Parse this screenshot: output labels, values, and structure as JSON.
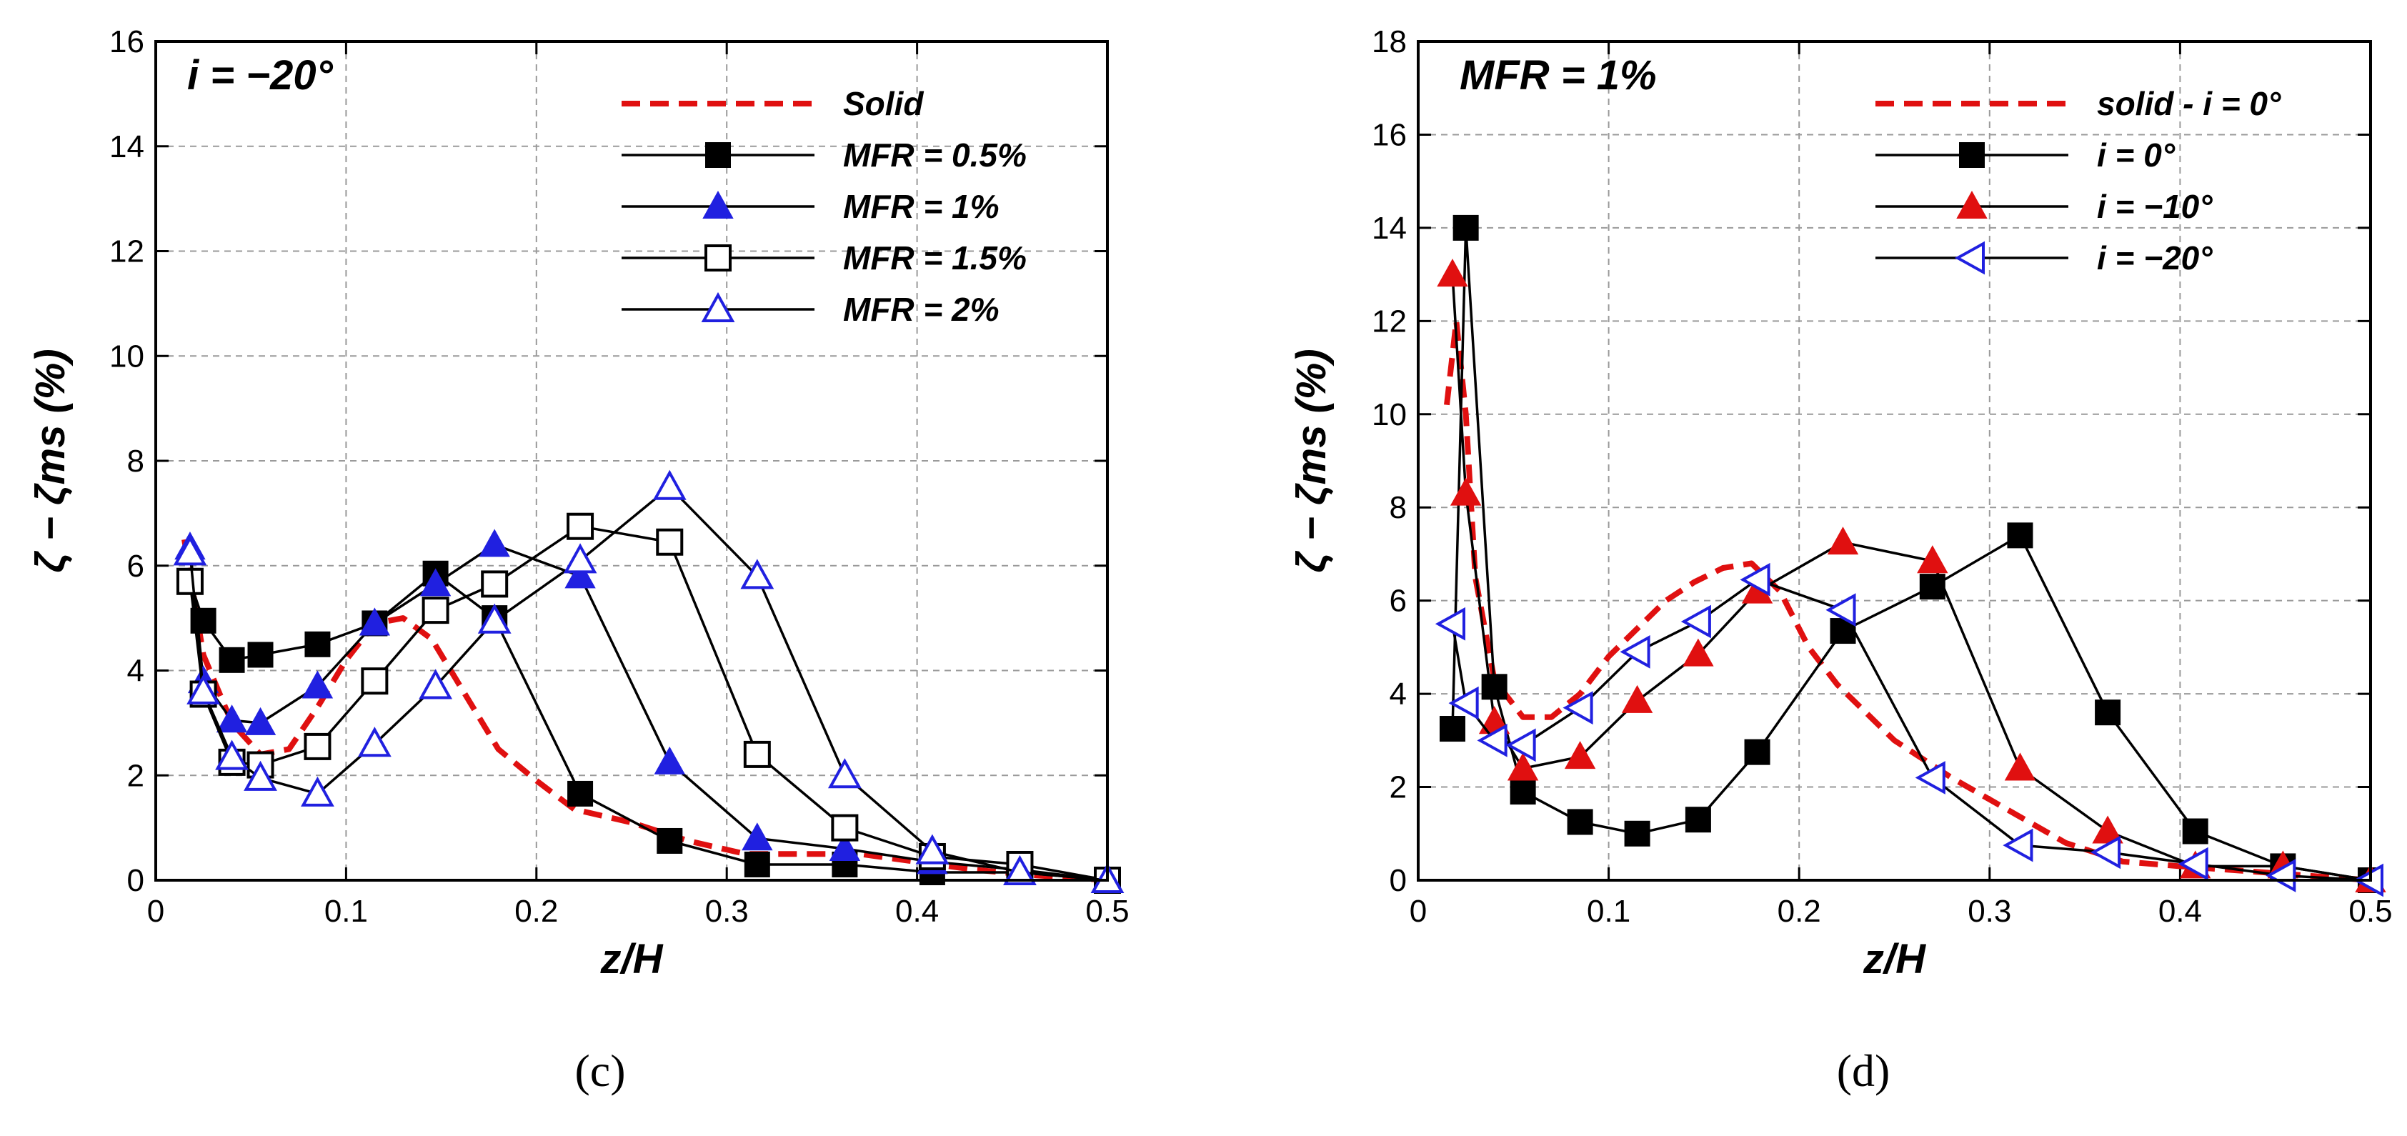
{
  "chart_data": [
    {
      "type": "line",
      "title": "i = −20°",
      "panel_label": "(c)",
      "xlabel": "z/H",
      "ylabel": "ζ − ζms (%)",
      "xlim": [
        0,
        0.5
      ],
      "ylim": [
        0,
        16
      ],
      "xticks": [
        0,
        0.1,
        0.2,
        0.3,
        0.4,
        0.5
      ],
      "yticks": [
        0,
        2,
        4,
        6,
        8,
        10,
        12,
        14,
        16
      ],
      "xtick_labels": [
        "0",
        "0.1",
        "0.2",
        "0.3",
        "0.4",
        "0.5"
      ],
      "ytick_labels": [
        "0",
        "2",
        "4",
        "6",
        "8",
        "10",
        "12",
        "14",
        "16"
      ],
      "grid": true,
      "legend_position": "top-right",
      "series": [
        {
          "name": "Solid",
          "color": "#e01010",
          "line": "dashed",
          "marker": "none",
          "x": [
            0.015,
            0.025,
            0.04,
            0.055,
            0.07,
            0.085,
            0.1,
            0.115,
            0.13,
            0.145,
            0.16,
            0.18,
            0.2,
            0.22,
            0.25,
            0.28,
            0.31,
            0.34,
            0.37,
            0.4,
            0.43,
            0.46,
            0.5
          ],
          "y": [
            6.5,
            4.3,
            3.0,
            2.4,
            2.5,
            3.3,
            4.2,
            4.9,
            5.0,
            4.6,
            3.7,
            2.5,
            1.9,
            1.35,
            1.1,
            0.75,
            0.5,
            0.5,
            0.5,
            0.35,
            0.2,
            0.1,
            0
          ]
        },
        {
          "name": "MFR = 0.5%",
          "color": "#000000",
          "line": "solid",
          "marker": "filled-square",
          "marker_color": "#000000",
          "x": [
            0.018,
            0.025,
            0.04,
            0.055,
            0.085,
            0.115,
            0.147,
            0.178,
            0.223,
            0.27,
            0.316,
            0.362,
            0.408,
            0.454,
            0.5
          ],
          "y": [
            5.7,
            4.95,
            4.2,
            4.3,
            4.5,
            4.9,
            5.85,
            5.0,
            1.65,
            0.75,
            0.3,
            0.3,
            0.15,
            0.15,
            0
          ]
        },
        {
          "name": "MFR = 1%",
          "color": "#000000",
          "line": "solid",
          "marker": "filled-triangle",
          "marker_color": "#2020e0",
          "x": [
            0.018,
            0.025,
            0.04,
            0.055,
            0.085,
            0.115,
            0.147,
            0.178,
            0.223,
            0.27,
            0.316,
            0.362,
            0.408,
            0.454,
            0.5
          ],
          "y": [
            6.35,
            3.8,
            3.05,
            3.0,
            3.7,
            4.9,
            5.65,
            6.4,
            5.8,
            2.25,
            0.8,
            0.6,
            0.35,
            0.2,
            0
          ]
        },
        {
          "name": "MFR = 1.5%",
          "color": "#000000",
          "line": "solid",
          "marker": "open-square",
          "marker_color": "#000000",
          "x": [
            0.018,
            0.025,
            0.04,
            0.055,
            0.085,
            0.115,
            0.147,
            0.178,
            0.223,
            0.27,
            0.316,
            0.362,
            0.408,
            0.454,
            0.5
          ],
          "y": [
            5.7,
            3.55,
            2.25,
            2.2,
            2.55,
            3.8,
            5.15,
            5.65,
            6.75,
            6.45,
            2.4,
            1.0,
            0.45,
            0.3,
            0
          ]
        },
        {
          "name": "MFR = 2%",
          "color": "#000000",
          "line": "solid",
          "marker": "open-triangle",
          "marker_color": "#2020e0",
          "x": [
            0.018,
            0.025,
            0.04,
            0.055,
            0.085,
            0.115,
            0.147,
            0.178,
            0.223,
            0.27,
            0.316,
            0.362,
            0.408,
            0.454,
            0.5
          ],
          "y": [
            6.25,
            3.6,
            2.35,
            1.95,
            1.65,
            2.6,
            3.7,
            4.95,
            6.1,
            7.5,
            5.8,
            2.0,
            0.55,
            0.15,
            0
          ]
        }
      ]
    },
    {
      "type": "line",
      "title": "MFR = 1%",
      "panel_label": "(d)",
      "xlabel": "z/H",
      "ylabel": "ζ − ζms (%)",
      "xlim": [
        0,
        0.5
      ],
      "ylim": [
        0,
        18
      ],
      "xticks": [
        0,
        0.1,
        0.2,
        0.3,
        0.4,
        0.5
      ],
      "yticks": [
        0,
        2,
        4,
        6,
        8,
        10,
        12,
        14,
        16,
        18
      ],
      "xtick_labels": [
        "0",
        "0.1",
        "0.2",
        "0.3",
        "0.4",
        "0.5"
      ],
      "ytick_labels": [
        "0",
        "2",
        "4",
        "6",
        "8",
        "10",
        "12",
        "14",
        "16",
        "18"
      ],
      "grid": true,
      "legend_position": "top-right",
      "series": [
        {
          "name": "solid - i = 0°",
          "color": "#e01010",
          "line": "dashed",
          "marker": "none",
          "x": [
            0.015,
            0.02,
            0.025,
            0.03,
            0.04,
            0.055,
            0.07,
            0.085,
            0.1,
            0.115,
            0.13,
            0.145,
            0.16,
            0.175,
            0.19,
            0.205,
            0.22,
            0.25,
            0.28,
            0.31,
            0.34,
            0.37,
            0.4,
            0.45,
            0.5
          ],
          "y": [
            10.2,
            12.0,
            10.0,
            6.5,
            4.3,
            3.5,
            3.5,
            4.0,
            4.8,
            5.4,
            6.0,
            6.4,
            6.7,
            6.8,
            6.2,
            5.0,
            4.2,
            3.0,
            2.2,
            1.5,
            0.8,
            0.4,
            0.3,
            0.15,
            0
          ]
        },
        {
          "name": "i = 0°",
          "color": "#000000",
          "line": "solid",
          "marker": "filled-square",
          "marker_color": "#000000",
          "x": [
            0.018,
            0.025,
            0.04,
            0.055,
            0.085,
            0.115,
            0.147,
            0.178,
            0.223,
            0.27,
            0.316,
            0.362,
            0.408,
            0.454,
            0.5
          ],
          "y": [
            3.25,
            14.0,
            4.15,
            1.9,
            1.25,
            1.0,
            1.3,
            2.75,
            5.35,
            6.3,
            7.4,
            3.6,
            1.05,
            0.3,
            0
          ]
        },
        {
          "name": "i = −10°",
          "color": "#000000",
          "line": "solid",
          "marker": "filled-triangle",
          "marker_color": "#e01010",
          "x": [
            0.018,
            0.025,
            0.04,
            0.055,
            0.085,
            0.115,
            0.147,
            0.178,
            0.223,
            0.27,
            0.316,
            0.362,
            0.408,
            0.454,
            0.5
          ],
          "y": [
            13.0,
            8.3,
            3.4,
            2.4,
            2.65,
            3.85,
            4.85,
            6.2,
            7.25,
            6.85,
            2.4,
            1.05,
            0.3,
            0.3,
            0
          ]
        },
        {
          "name": "i = −20°",
          "color": "#000000",
          "line": "solid",
          "marker": "open-left-triangle",
          "marker_color": "#2020e0",
          "x": [
            0.018,
            0.025,
            0.04,
            0.055,
            0.085,
            0.115,
            0.147,
            0.178,
            0.223,
            0.27,
            0.316,
            0.362,
            0.408,
            0.454,
            0.5
          ],
          "y": [
            5.5,
            3.8,
            3.0,
            2.9,
            3.7,
            4.9,
            5.55,
            6.45,
            5.8,
            2.2,
            0.75,
            0.6,
            0.35,
            0.1,
            0
          ]
        }
      ]
    }
  ]
}
